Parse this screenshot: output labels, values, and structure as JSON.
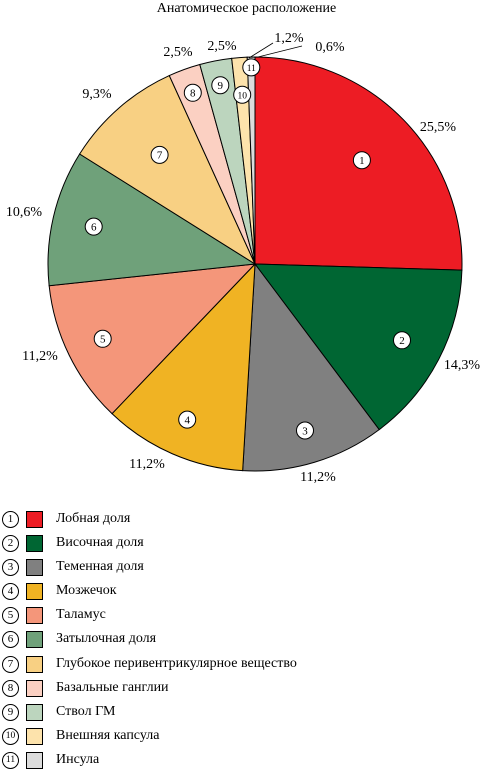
{
  "chart_data": {
    "type": "pie",
    "title": "Анатомическое расположение",
    "slices": [
      {
        "marker": "1",
        "label": "Лобная доля",
        "value": 25.5,
        "value_label": "25,5%",
        "color": "#ed1c24"
      },
      {
        "marker": "2",
        "label": "Височная доля",
        "value": 14.3,
        "value_label": "14,3%",
        "color": "#006633"
      },
      {
        "marker": "3",
        "label": "Теменная доля",
        "value": 11.2,
        "value_label": "11,2%",
        "color": "#808080"
      },
      {
        "marker": "4",
        "label": "Мозжечок",
        "value": 11.2,
        "value_label": "11,2%",
        "color": "#f0b323"
      },
      {
        "marker": "5",
        "label": "Таламус",
        "value": 11.2,
        "value_label": "11,2%",
        "color": "#f4967a"
      },
      {
        "marker": "6",
        "label": "Затылочная доля",
        "value": 10.6,
        "value_label": "10,6%",
        "color": "#6fa17a"
      },
      {
        "marker": "7",
        "label": "Глубокое перивентрикулярное вещество",
        "value": 9.3,
        "value_label": "9,3%",
        "color": "#f8d083"
      },
      {
        "marker": "8",
        "label": "Базальные ганглии",
        "value": 2.5,
        "value_label": "2,5%",
        "color": "#fbd0c2"
      },
      {
        "marker": "9",
        "label": "Ствол ГМ",
        "value": 2.5,
        "value_label": "2,5%",
        "color": "#bcd5be"
      },
      {
        "marker": "10",
        "label": "Внешняя капсула",
        "value": 1.2,
        "value_label": "1,2%",
        "color": "#fde3ac"
      },
      {
        "marker": "11",
        "label": "Инсула",
        "value": 0.6,
        "value_label": "0,6%",
        "color": "#dcdcdc"
      }
    ],
    "legend_position": "bottom-left"
  }
}
